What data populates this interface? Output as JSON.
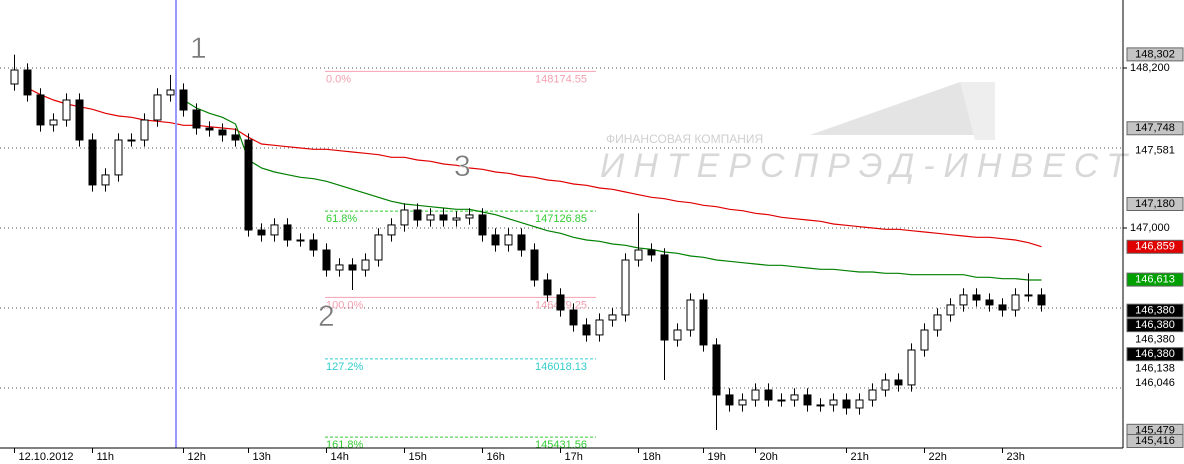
{
  "chart_data": {
    "type": "candlestick",
    "categories": [
      "12.10.2012",
      null,
      null,
      null,
      null,
      null,
      "11h",
      null,
      null,
      null,
      null,
      null,
      null,
      "12h",
      null,
      null,
      null,
      null,
      "13h",
      null,
      null,
      null,
      null,
      null,
      "14h",
      null,
      null,
      null,
      null,
      null,
      "15h",
      null,
      null,
      null,
      null,
      null,
      "16h",
      null,
      null,
      null,
      null,
      null,
      "17h",
      null,
      null,
      null,
      null,
      null,
      "18h",
      null,
      null,
      null,
      null,
      "19h",
      null,
      null,
      null,
      "20h",
      null,
      null,
      null,
      null,
      null,
      null,
      "21h",
      null,
      null,
      null,
      null,
      null,
      "22h",
      null,
      null,
      null,
      null,
      null,
      "23h",
      null,
      null,
      null
    ],
    "open": [
      148.08,
      148.185,
      147.998,
      147.773,
      147.81,
      147.96,
      147.66,
      147.323,
      147.398,
      147.66,
      147.66,
      147.81,
      147.998,
      148.035,
      147.885,
      147.75,
      147.735,
      147.698,
      147.66,
      146.985,
      146.948,
      147.023,
      146.91,
      146.91,
      146.835,
      146.685,
      146.723,
      146.685,
      146.76,
      146.948,
      147.023,
      147.135,
      147.06,
      147.098,
      147.06,
      147.075,
      147.098,
      146.948,
      146.873,
      146.948,
      146.835,
      146.61,
      146.498,
      146.385,
      146.273,
      146.198,
      146.31,
      146.348,
      146.76,
      146.835,
      146.798,
      146.16,
      146.235,
      146.46,
      146.123,
      145.748,
      145.673,
      145.71,
      145.785,
      145.71,
      145.71,
      145.748,
      145.673,
      145.673,
      145.71,
      145.65,
      145.71,
      145.785,
      145.86,
      145.823,
      146.085,
      146.235,
      146.348,
      146.423,
      146.498,
      146.46,
      146.423,
      146.385,
      146.498,
      146.498
    ],
    "high": [
      148.3,
      148.235,
      148.048,
      147.86,
      148.01,
      148.01,
      147.71,
      147.448,
      147.71,
      147.71,
      147.86,
      148.048,
      148.148,
      148.085,
      147.935,
      147.8,
      147.785,
      147.748,
      147.71,
      147.035,
      147.073,
      147.073,
      146.96,
      146.96,
      146.885,
      146.773,
      146.773,
      146.81,
      146.998,
      147.073,
      147.185,
      147.185,
      147.148,
      147.148,
      147.125,
      147.148,
      147.148,
      146.998,
      146.998,
      146.998,
      146.885,
      146.66,
      146.548,
      146.435,
      146.323,
      146.36,
      146.398,
      146.81,
      147.11,
      146.885,
      146.848,
      146.285,
      146.51,
      146.51,
      146.173,
      145.798,
      145.76,
      145.835,
      145.835,
      145.76,
      145.798,
      145.798,
      145.723,
      145.76,
      145.76,
      145.76,
      145.835,
      145.91,
      145.91,
      146.135,
      146.285,
      146.398,
      146.473,
      146.548,
      146.548,
      146.51,
      146.473,
      146.548,
      146.66,
      146.548
    ],
    "low": [
      148.03,
      147.948,
      147.723,
      147.723,
      147.76,
      147.61,
      147.273,
      147.273,
      147.348,
      147.61,
      147.61,
      147.76,
      147.948,
      147.835,
      147.7,
      147.685,
      147.648,
      147.61,
      146.935,
      146.898,
      146.898,
      146.86,
      146.86,
      146.785,
      146.635,
      146.635,
      146.535,
      146.635,
      146.71,
      146.898,
      146.973,
      147.01,
      147.01,
      147.01,
      147.01,
      147.025,
      146.898,
      146.823,
      146.823,
      146.785,
      146.56,
      146.448,
      146.335,
      146.223,
      146.148,
      146.148,
      146.26,
      146.298,
      146.71,
      146.748,
      145.86,
      146.11,
      146.185,
      146.073,
      145.485,
      145.623,
      145.623,
      145.66,
      145.66,
      145.66,
      145.66,
      145.623,
      145.623,
      145.623,
      145.6,
      145.6,
      145.66,
      145.735,
      145.773,
      145.773,
      146.035,
      146.185,
      146.298,
      146.373,
      146.41,
      146.373,
      146.335,
      146.335,
      146.448,
      146.373
    ],
    "close": [
      148.185,
      147.998,
      147.773,
      147.81,
      147.96,
      147.66,
      147.323,
      147.398,
      147.66,
      147.66,
      147.81,
      147.998,
      148.035,
      147.885,
      147.75,
      147.735,
      147.698,
      147.66,
      146.985,
      146.948,
      147.023,
      146.91,
      146.91,
      146.835,
      146.685,
      146.723,
      146.685,
      146.76,
      146.948,
      147.023,
      147.135,
      147.06,
      147.098,
      147.06,
      147.075,
      147.098,
      146.948,
      146.873,
      146.948,
      146.835,
      146.61,
      146.498,
      146.385,
      146.273,
      146.198,
      146.31,
      146.348,
      146.76,
      146.835,
      146.798,
      146.16,
      146.235,
      146.46,
      146.123,
      145.748,
      145.673,
      145.71,
      145.785,
      145.71,
      145.71,
      145.748,
      145.673,
      145.673,
      145.71,
      145.65,
      145.71,
      145.785,
      145.86,
      145.823,
      146.085,
      146.235,
      146.348,
      146.423,
      146.498,
      146.46,
      146.423,
      146.385,
      146.498,
      146.498,
      146.423
    ],
    "indicators": [
      {
        "color": "#e00000",
        "values": [
          null,
          148.05,
          148.0,
          147.96,
          147.93,
          147.91,
          147.89,
          147.86,
          147.84,
          147.83,
          147.81,
          147.8,
          147.79,
          147.77,
          147.77,
          147.76,
          147.75,
          147.74,
          147.68,
          147.63,
          147.62,
          147.61,
          147.6,
          147.59,
          147.59,
          147.58,
          147.57,
          147.56,
          147.55,
          147.53,
          147.53,
          147.51,
          147.5,
          147.48,
          147.47,
          147.45,
          147.44,
          147.42,
          147.41,
          147.39,
          147.38,
          147.36,
          147.35,
          147.33,
          147.32,
          147.3,
          147.29,
          147.27,
          147.25,
          147.23,
          147.22,
          147.2,
          147.19,
          147.17,
          147.16,
          147.14,
          147.13,
          147.11,
          147.1,
          147.08,
          147.07,
          147.06,
          147.05,
          147.03,
          147.02,
          147.01,
          147.0,
          146.99,
          146.99,
          146.98,
          146.97,
          146.96,
          146.95,
          146.94,
          146.93,
          146.93,
          146.92,
          146.91,
          146.89,
          146.86
        ]
      },
      {
        "color": "#008000",
        "values": [
          null,
          null,
          null,
          null,
          null,
          null,
          null,
          null,
          null,
          null,
          null,
          null,
          null,
          147.96,
          147.9,
          147.86,
          147.83,
          147.78,
          147.51,
          147.45,
          147.42,
          147.4,
          147.38,
          147.37,
          147.35,
          147.32,
          147.29,
          147.26,
          147.23,
          147.2,
          147.18,
          147.17,
          147.16,
          147.15,
          147.14,
          147.14,
          147.12,
          147.1,
          147.07,
          147.04,
          147.01,
          146.98,
          146.96,
          146.93,
          146.91,
          146.9,
          146.88,
          146.87,
          146.85,
          146.84,
          146.82,
          146.81,
          146.79,
          146.78,
          146.76,
          146.75,
          146.74,
          146.73,
          146.72,
          146.72,
          146.71,
          146.7,
          146.69,
          146.69,
          146.68,
          146.67,
          146.67,
          146.66,
          146.66,
          146.65,
          146.65,
          146.65,
          146.65,
          146.65,
          146.63,
          146.63,
          146.62,
          146.62,
          146.61,
          146.61
        ]
      }
    ],
    "ylim": [
      145.35,
      148.71
    ],
    "yticks": [
      {
        "value": 148.2,
        "label": "148,200"
      },
      {
        "value": 147.0,
        "label": "147,000"
      }
    ],
    "grid_lines": [
      148.2,
      147.6,
      147.0,
      146.4,
      145.8
    ],
    "price_markers": [
      {
        "value": 148.302,
        "label": "148,302",
        "style": "gray"
      },
      {
        "value": 147.748,
        "label": "147,748",
        "style": "gray"
      },
      {
        "value": 147.581,
        "label": "147,581",
        "style": "plain"
      },
      {
        "value": 147.18,
        "label": "147,180",
        "style": "gray"
      },
      {
        "value": 146.859,
        "label": "146,859",
        "style": "red"
      },
      {
        "value": 146.613,
        "label": "146,613",
        "style": "green"
      },
      {
        "value": 146.38,
        "label": "146,380",
        "style": "black"
      },
      {
        "value": 146.38,
        "label": "146,380",
        "style": "black"
      },
      {
        "value": 146.38,
        "label": "146,380",
        "style": "plain"
      },
      {
        "value": 146.38,
        "label": "146,380",
        "style": "black"
      },
      {
        "value": 146.138,
        "label": "146,138",
        "style": "plain"
      },
      {
        "value": 146.046,
        "label": "146,046",
        "style": "plain"
      },
      {
        "value": 145.479,
        "label": "145,479",
        "style": "gray"
      },
      {
        "value": 145.416,
        "label": "145,416",
        "style": "gray"
      }
    ],
    "fibonacci": [
      {
        "label": "0.0%",
        "price_label": "148174.55",
        "value": 148.17455,
        "color": "#f4a0b0",
        "dashed": false
      },
      {
        "label": "61.8%",
        "price_label": "147126.85",
        "value": 147.12685,
        "color": "#33cc33",
        "dashed": true
      },
      {
        "label": "100.0%",
        "price_label": "146479.25",
        "value": 146.47925,
        "color": "#f4a0b0",
        "dashed": false
      },
      {
        "label": "127.2%",
        "price_label": "146018.13",
        "value": 146.01813,
        "color": "#33cccc",
        "dashed": true
      },
      {
        "label": "161.8%",
        "price_label": "145431.56",
        "value": 145.43156,
        "color": "#33cc33",
        "dashed": true
      }
    ],
    "annotations": [
      "1",
      "2",
      "3"
    ],
    "watermark": {
      "company": "ФИНАНСОВАЯ КОМПАНИЯ",
      "brand": "ИНТЕРСПРЭД-ИНВЕСТ"
    }
  }
}
